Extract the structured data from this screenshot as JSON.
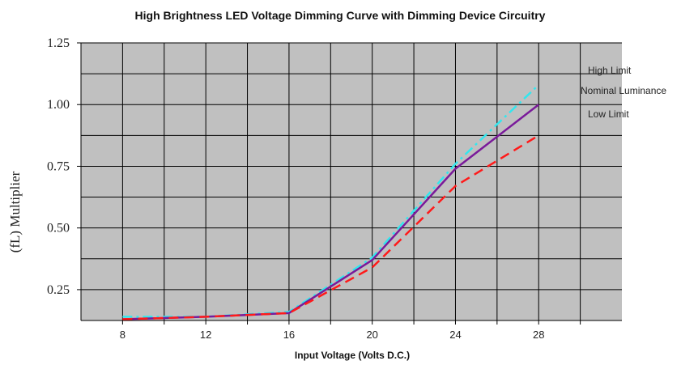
{
  "chart_data": {
    "type": "line",
    "title": "High Brightness LED Voltage Dimming Curve with Dimming Device Circuitry",
    "xlabel": "Input Voltage (Volts D.C.)",
    "ylabel": "(fL) Multiplier",
    "x_ticks": [
      "8",
      "12",
      "16",
      "20",
      "24",
      "28"
    ],
    "y_ticks": [
      "1.25",
      "1.00",
      "0.75",
      "0.50",
      "0.25"
    ],
    "xlim": [
      6,
      32
    ],
    "ylim": [
      0.125,
      1.25
    ],
    "grid": true,
    "plot_background": "#c0c0c0",
    "x": [
      8,
      12,
      16,
      20,
      24,
      28
    ],
    "series": [
      {
        "name": "High Limit",
        "values": [
          0.14,
          0.14,
          0.16,
          0.38,
          0.76,
          1.08
        ],
        "color": "#33e6ee",
        "dash": "dash-dot"
      },
      {
        "name": "Nominal Luminance",
        "values": [
          0.13,
          0.14,
          0.155,
          0.37,
          0.74,
          1.0
        ],
        "color": "#7a1a9a",
        "dash": "solid"
      },
      {
        "name": "Low  Limit",
        "values": [
          0.13,
          0.14,
          0.155,
          0.34,
          0.67,
          0.875
        ],
        "color": "#ff1a1a",
        "dash": "dash"
      }
    ]
  }
}
